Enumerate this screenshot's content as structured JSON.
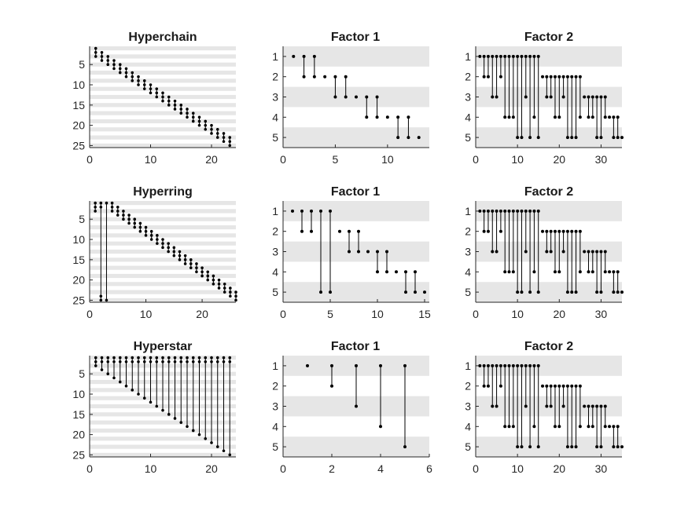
{
  "chart_data": [
    {
      "type": "scatter",
      "title": "Hyperchain",
      "rows": 25,
      "xlim": [
        0,
        24
      ],
      "ylim": [
        0.5,
        25.5
      ],
      "xticks": [
        0,
        10,
        20
      ],
      "yticks": [
        5,
        10,
        15,
        20,
        25
      ],
      "grid": "alternating row bands",
      "hyperedges": [
        [
          1,
          2,
          3
        ],
        [
          2,
          3,
          4
        ],
        [
          3,
          4,
          5
        ],
        [
          4,
          5,
          6
        ],
        [
          5,
          6,
          7
        ],
        [
          6,
          7,
          8
        ],
        [
          7,
          8,
          9
        ],
        [
          8,
          9,
          10
        ],
        [
          9,
          10,
          11
        ],
        [
          10,
          11,
          12
        ],
        [
          11,
          12,
          13
        ],
        [
          12,
          13,
          14
        ],
        [
          13,
          14,
          15
        ],
        [
          14,
          15,
          16
        ],
        [
          15,
          16,
          17
        ],
        [
          16,
          17,
          18
        ],
        [
          17,
          18,
          19
        ],
        [
          18,
          19,
          20
        ],
        [
          19,
          20,
          21
        ],
        [
          20,
          21,
          22
        ],
        [
          21,
          22,
          23
        ],
        [
          22,
          23,
          24
        ],
        [
          23,
          24,
          25
        ]
      ]
    },
    {
      "type": "scatter",
      "title": "Factor 1",
      "rows": 5,
      "xlim": [
        0,
        14
      ],
      "ylim": [
        0.5,
        5.5
      ],
      "xticks": [
        0,
        5,
        10
      ],
      "yticks": [
        1,
        2,
        3,
        4,
        5
      ],
      "grid": "alternating row bands",
      "hyperedges": [
        [
          1
        ],
        [
          1,
          2
        ],
        [
          1,
          2
        ],
        [
          2
        ],
        [
          2,
          3
        ],
        [
          2,
          3
        ],
        [
          3
        ],
        [
          3,
          4
        ],
        [
          3,
          4
        ],
        [
          4
        ],
        [
          4,
          5
        ],
        [
          4,
          5
        ],
        [
          5
        ]
      ]
    },
    {
      "type": "scatter",
      "title": "Factor 2",
      "rows": 5,
      "xlim": [
        0,
        35
      ],
      "ylim": [
        0.5,
        5.5
      ],
      "xticks": [
        0,
        10,
        20,
        30
      ],
      "yticks": [
        1,
        2,
        3,
        4,
        5
      ],
      "grid": "alternating row bands",
      "hyperedges": [
        [
          1
        ],
        [
          1,
          2
        ],
        [
          1,
          2
        ],
        [
          1,
          3
        ],
        [
          1,
          3
        ],
        [
          1,
          2
        ],
        [
          1,
          4
        ],
        [
          1,
          4
        ],
        [
          1,
          4
        ],
        [
          1,
          5
        ],
        [
          1,
          5
        ],
        [
          1,
          3
        ],
        [
          1,
          5
        ],
        [
          1,
          4
        ],
        [
          1,
          5
        ],
        [
          2
        ],
        [
          2,
          3
        ],
        [
          2,
          3
        ],
        [
          2,
          4
        ],
        [
          2,
          4
        ],
        [
          2,
          3
        ],
        [
          2,
          5
        ],
        [
          2,
          5
        ],
        [
          2,
          5
        ],
        [
          2,
          4
        ],
        [
          3
        ],
        [
          3,
          4
        ],
        [
          3,
          4
        ],
        [
          3,
          5
        ],
        [
          3,
          5
        ],
        [
          3,
          4
        ],
        [
          4
        ],
        [
          4,
          5
        ],
        [
          4,
          5
        ],
        [
          5
        ]
      ]
    },
    {
      "type": "scatter",
      "title": "Hyperring",
      "rows": 25,
      "xlim": [
        0,
        26
      ],
      "ylim": [
        0.5,
        25.5
      ],
      "xticks": [
        0,
        10,
        20
      ],
      "yticks": [
        5,
        10,
        15,
        20,
        25
      ],
      "grid": "alternating row bands",
      "hyperedges": [
        [
          1,
          2,
          3
        ],
        [
          1,
          2,
          24,
          25
        ],
        [
          1,
          25
        ],
        [
          1,
          2,
          3
        ],
        [
          2,
          3,
          4
        ],
        [
          3,
          4,
          5
        ],
        [
          4,
          5,
          6
        ],
        [
          5,
          6,
          7
        ],
        [
          6,
          7,
          8
        ],
        [
          7,
          8,
          9
        ],
        [
          8,
          9,
          10
        ],
        [
          9,
          10,
          11
        ],
        [
          10,
          11,
          12
        ],
        [
          11,
          12,
          13
        ],
        [
          12,
          13,
          14
        ],
        [
          13,
          14,
          15
        ],
        [
          14,
          15,
          16
        ],
        [
          15,
          16,
          17
        ],
        [
          16,
          17,
          18
        ],
        [
          17,
          18,
          19
        ],
        [
          18,
          19,
          20
        ],
        [
          19,
          20,
          21
        ],
        [
          20,
          21,
          22
        ],
        [
          21,
          22,
          23
        ],
        [
          22,
          23,
          24
        ],
        [
          23,
          24,
          25
        ]
      ]
    },
    {
      "type": "scatter",
      "title": "Factor 1",
      "rows": 5,
      "xlim": [
        0,
        15.5
      ],
      "ylim": [
        0.5,
        5.5
      ],
      "xticks": [
        0,
        5,
        10,
        15
      ],
      "yticks": [
        1,
        2,
        3,
        4,
        5
      ],
      "grid": "alternating row bands",
      "hyperedges": [
        [
          1
        ],
        [
          1,
          2
        ],
        [
          1,
          2
        ],
        [
          1,
          5
        ],
        [
          1,
          5
        ],
        [
          2
        ],
        [
          2,
          3
        ],
        [
          2,
          3
        ],
        [
          3
        ],
        [
          3,
          4
        ],
        [
          3,
          4
        ],
        [
          4
        ],
        [
          4,
          5
        ],
        [
          4,
          5
        ],
        [
          5
        ]
      ]
    },
    {
      "type": "scatter",
      "title": "Factor 2",
      "rows": 5,
      "xlim": [
        0,
        35
      ],
      "ylim": [
        0.5,
        5.5
      ],
      "xticks": [
        0,
        10,
        20,
        30
      ],
      "yticks": [
        1,
        2,
        3,
        4,
        5
      ],
      "grid": "alternating row bands",
      "hyperedges": [
        [
          1
        ],
        [
          1,
          2
        ],
        [
          1,
          2
        ],
        [
          1,
          3
        ],
        [
          1,
          3
        ],
        [
          1,
          2
        ],
        [
          1,
          4
        ],
        [
          1,
          4
        ],
        [
          1,
          4
        ],
        [
          1,
          5
        ],
        [
          1,
          5
        ],
        [
          1,
          3
        ],
        [
          1,
          5
        ],
        [
          1,
          4
        ],
        [
          1,
          5
        ],
        [
          2
        ],
        [
          2,
          3
        ],
        [
          2,
          3
        ],
        [
          2,
          4
        ],
        [
          2,
          4
        ],
        [
          2,
          3
        ],
        [
          2,
          5
        ],
        [
          2,
          5
        ],
        [
          2,
          5
        ],
        [
          2,
          4
        ],
        [
          3
        ],
        [
          3,
          4
        ],
        [
          3,
          4
        ],
        [
          3,
          5
        ],
        [
          3,
          5
        ],
        [
          3,
          4
        ],
        [
          4
        ],
        [
          4,
          5
        ],
        [
          4,
          5
        ],
        [
          5
        ]
      ]
    },
    {
      "type": "scatter",
      "title": "Hyperstar",
      "rows": 25,
      "xlim": [
        0,
        24
      ],
      "ylim": [
        0.5,
        25.5
      ],
      "xticks": [
        0,
        10,
        20
      ],
      "yticks": [
        5,
        10,
        15,
        20,
        25
      ],
      "grid": "alternating row bands",
      "hyperedges": [
        [
          1,
          2,
          3
        ],
        [
          1,
          2,
          4
        ],
        [
          1,
          2,
          5
        ],
        [
          1,
          2,
          6
        ],
        [
          1,
          2,
          7
        ],
        [
          1,
          2,
          8
        ],
        [
          1,
          2,
          9
        ],
        [
          1,
          2,
          10
        ],
        [
          1,
          2,
          11
        ],
        [
          1,
          2,
          12
        ],
        [
          1,
          2,
          13
        ],
        [
          1,
          2,
          14
        ],
        [
          1,
          2,
          15
        ],
        [
          1,
          2,
          16
        ],
        [
          1,
          2,
          17
        ],
        [
          1,
          2,
          18
        ],
        [
          1,
          2,
          19
        ],
        [
          1,
          2,
          20
        ],
        [
          1,
          2,
          21
        ],
        [
          1,
          2,
          22
        ],
        [
          1,
          2,
          23
        ],
        [
          1,
          2,
          24
        ],
        [
          1,
          2,
          25
        ]
      ]
    },
    {
      "type": "scatter",
      "title": "Factor 1",
      "rows": 5,
      "xlim": [
        0,
        6
      ],
      "ylim": [
        0.5,
        5.5
      ],
      "xticks": [
        0,
        2,
        4,
        6
      ],
      "yticks": [
        1,
        2,
        3,
        4,
        5
      ],
      "grid": "alternating row bands",
      "hyperedges": [
        [
          1
        ],
        [
          1,
          2
        ],
        [
          1,
          3
        ],
        [
          1,
          4
        ],
        [
          1,
          5
        ]
      ]
    },
    {
      "type": "scatter",
      "title": "Factor 2",
      "rows": 5,
      "xlim": [
        0,
        35
      ],
      "ylim": [
        0.5,
        5.5
      ],
      "xticks": [
        0,
        10,
        20,
        30
      ],
      "yticks": [
        1,
        2,
        3,
        4,
        5
      ],
      "grid": "alternating row bands",
      "hyperedges": [
        [
          1
        ],
        [
          1,
          2
        ],
        [
          1,
          2
        ],
        [
          1,
          3
        ],
        [
          1,
          3
        ],
        [
          1,
          2
        ],
        [
          1,
          4
        ],
        [
          1,
          4
        ],
        [
          1,
          4
        ],
        [
          1,
          5
        ],
        [
          1,
          5
        ],
        [
          1,
          3
        ],
        [
          1,
          5
        ],
        [
          1,
          4
        ],
        [
          1,
          5
        ],
        [
          2
        ],
        [
          2,
          3
        ],
        [
          2,
          3
        ],
        [
          2,
          4
        ],
        [
          2,
          4
        ],
        [
          2,
          3
        ],
        [
          2,
          5
        ],
        [
          2,
          5
        ],
        [
          2,
          5
        ],
        [
          2,
          4
        ],
        [
          3
        ],
        [
          3,
          4
        ],
        [
          3,
          4
        ],
        [
          3,
          5
        ],
        [
          3,
          5
        ],
        [
          3,
          4
        ],
        [
          4
        ],
        [
          4,
          5
        ],
        [
          4,
          5
        ],
        [
          5
        ]
      ]
    }
  ],
  "colors": {
    "band": "#e6e6e6",
    "mark": "#000000",
    "axis": "#262626"
  }
}
